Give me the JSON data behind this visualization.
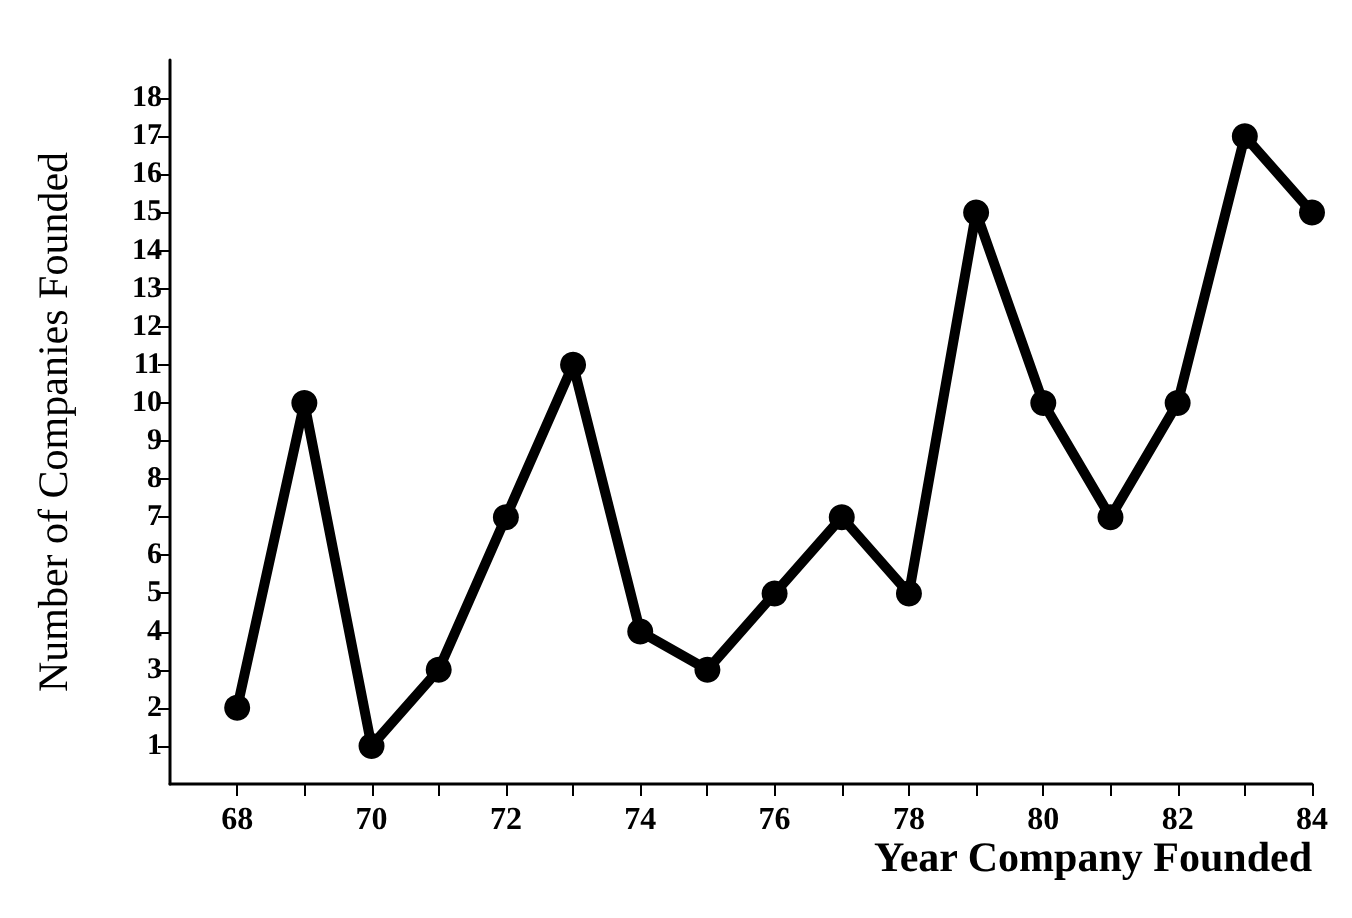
{
  "chart_data": {
    "type": "line",
    "xlabel": "Year Company Founded",
    "ylabel": "Number of Companies Founded",
    "x": [
      68,
      69,
      70,
      71,
      72,
      73,
      74,
      75,
      76,
      77,
      78,
      79,
      80,
      81,
      82,
      83,
      84
    ],
    "series": [
      {
        "color": "#000000",
        "values": [
          2,
          10,
          1,
          3,
          7,
          11,
          4,
          3,
          5,
          7,
          5,
          15,
          10,
          7,
          10,
          17,
          15
        ]
      }
    ],
    "xlim": [
      67,
      84
    ],
    "xticks": [
      68,
      {
        "value": 69,
        "label": null
      },
      70,
      {
        "value": 71,
        "label": null
      },
      72,
      {
        "value": 73,
        "label": null
      },
      74,
      {
        "value": 75,
        "label": null
      },
      76,
      {
        "value": 77,
        "label": null
      },
      78,
      {
        "value": 79,
        "label": null
      },
      80,
      {
        "value": 81,
        "label": null
      },
      82,
      {
        "value": 83,
        "label": null
      },
      84
    ],
    "ylim": [
      0,
      19
    ],
    "yticks": [
      1,
      2,
      3,
      4,
      5,
      6,
      7,
      8,
      9,
      10,
      11,
      12,
      13,
      14,
      15,
      16,
      17,
      18
    ],
    "grid": false,
    "marker": "circle",
    "line_style": "solid"
  }
}
